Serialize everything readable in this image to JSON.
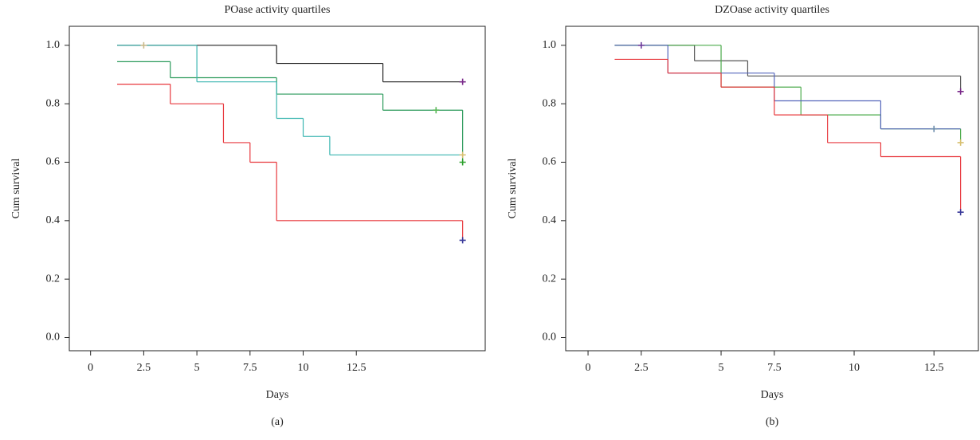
{
  "chart_data": [
    {
      "type": "step",
      "title": "POase activity quartiles",
      "xlabel": "Days",
      "ylabel": "Cum survival",
      "caption": "(a)",
      "xlim": [
        -0.8,
        14.85
      ],
      "ylim": [
        -0.045,
        1.065
      ],
      "xticks": [
        0,
        {
          "value": 2,
          "label": "2.5"
        },
        {
          "value": 4,
          "label": "5"
        },
        {
          "value": 6,
          "label": "7.5"
        },
        {
          "value": 8,
          "label": "10"
        },
        {
          "value": 10,
          "label": "12.5"
        }
      ],
      "yticks": [
        {
          "value": 0,
          "label": "0.0"
        },
        {
          "value": 0.2,
          "label": "0.2"
        },
        {
          "value": 0.4,
          "label": "0.4"
        },
        {
          "value": 0.6,
          "label": "0.6"
        },
        {
          "value": 0.8,
          "label": "0.8"
        },
        {
          "value": 1,
          "label": "1.0"
        }
      ],
      "series": [
        {
          "color": "#222222",
          "x": [
            1,
            7,
            11,
            14
          ],
          "values": [
            1.0,
            0.938,
            0.875,
            0.875
          ]
        },
        {
          "color": "#2a9a5a",
          "x": [
            1,
            3,
            7,
            11,
            14
          ],
          "values": [
            0.944,
            0.889,
            0.833,
            0.778,
            0.6
          ]
        },
        {
          "color": "#3ab5b0",
          "x": [
            1,
            4,
            7,
            8,
            9,
            14
          ],
          "values": [
            1.0,
            0.875,
            0.75,
            0.688,
            0.625,
            0.625
          ]
        },
        {
          "color": "#e8383d",
          "x": [
            1,
            3,
            5,
            6,
            7,
            14
          ],
          "values": [
            0.867,
            0.8,
            0.667,
            0.6,
            0.4,
            0.333
          ]
        }
      ],
      "censored": [
        {
          "color": "#c8b98a",
          "x": 2,
          "value": 1.0
        },
        {
          "color": "#7a2a8a",
          "x": 14,
          "value": 0.875
        },
        {
          "color": "#5ab85a",
          "x": 13,
          "value": 0.778
        },
        {
          "color": "#2aa02a",
          "x": 14,
          "value": 0.6
        },
        {
          "color": "#d8c070",
          "x": 14,
          "value": 0.625
        },
        {
          "color": "#3a3a9a",
          "x": 14,
          "value": 0.333
        }
      ]
    },
    {
      "type": "step",
      "title": "DZOase activity quartiles",
      "xlabel": "Days",
      "ylabel": "Cum survival",
      "caption": "(b)",
      "xlim": [
        -0.84,
        14.67
      ],
      "ylim": [
        -0.045,
        1.065
      ],
      "xticks": [
        0,
        {
          "value": 2,
          "label": "2.5"
        },
        {
          "value": 5,
          "label": "5"
        },
        {
          "value": 7,
          "label": "7.5"
        },
        {
          "value": 10,
          "label": "10"
        },
        {
          "value": 13,
          "label": "12.5"
        }
      ],
      "yticks": [
        {
          "value": 0,
          "label": "0.0"
        },
        {
          "value": 0.2,
          "label": "0.2"
        },
        {
          "value": 0.4,
          "label": "0.4"
        },
        {
          "value": 0.6,
          "label": "0.6"
        },
        {
          "value": 0.8,
          "label": "0.8"
        },
        {
          "value": 1,
          "label": "1.0"
        }
      ],
      "series": [
        {
          "color": "#555555",
          "x": [
            1,
            4,
            6,
            14
          ],
          "values": [
            1.0,
            0.947,
            0.895,
            0.842
          ]
        },
        {
          "color": "#4aaa4a",
          "x": [
            1,
            5,
            8,
            11,
            14
          ],
          "values": [
            1.0,
            0.857,
            0.762,
            0.714,
            0.667
          ]
        },
        {
          "color": "#5566bb",
          "x": [
            1,
            3,
            7,
            11,
            14
          ],
          "values": [
            1.0,
            0.905,
            0.81,
            0.714,
            0.714
          ]
        },
        {
          "color": "#e8383d",
          "x": [
            1,
            3,
            5,
            7,
            9,
            11,
            14
          ],
          "values": [
            0.952,
            0.905,
            0.857,
            0.762,
            0.667,
            0.619,
            0.429
          ]
        }
      ],
      "censored": [
        {
          "color": "#6a3a9a",
          "x": 2,
          "value": 1.0
        },
        {
          "color": "#7a2a8a",
          "x": 14,
          "value": 0.842
        },
        {
          "color": "#6a8aaa",
          "x": 13,
          "value": 0.714
        },
        {
          "color": "#d8c070",
          "x": 14,
          "value": 0.667
        },
        {
          "color": "#3a3a9a",
          "x": 14,
          "value": 0.429
        }
      ]
    }
  ]
}
